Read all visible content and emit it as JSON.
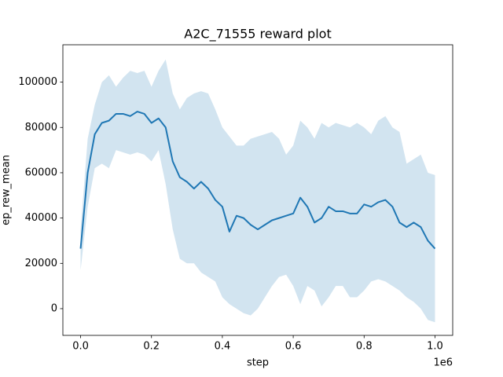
{
  "chart_data": {
    "type": "line",
    "title": "A2C_71555 reward plot",
    "x_label": "step",
    "y_label": "ep_rew_mean",
    "x_offset_label": "1e6",
    "x": [
      0,
      20000,
      40000,
      60000,
      80000,
      100000,
      120000,
      140000,
      160000,
      180000,
      200000,
      220000,
      240000,
      260000,
      280000,
      300000,
      320000,
      340000,
      360000,
      380000,
      400000,
      420000,
      440000,
      460000,
      480000,
      500000,
      520000,
      540000,
      560000,
      580000,
      600000,
      620000,
      640000,
      660000,
      680000,
      700000,
      720000,
      740000,
      760000,
      780000,
      800000,
      820000,
      840000,
      860000,
      880000,
      900000,
      920000,
      940000,
      960000,
      980000,
      1000000
    ],
    "series": [
      {
        "color": "#1f77b4",
        "band_opacity": 0.2,
        "values": [
          26500,
          60000,
          77000,
          82000,
          83000,
          86000,
          86000,
          85000,
          87000,
          86000,
          82000,
          84000,
          80000,
          65000,
          58000,
          56000,
          53000,
          56000,
          53000,
          48000,
          45000,
          34000,
          41000,
          40000,
          37000,
          35000,
          37000,
          39000,
          40000,
          41000,
          42000,
          49000,
          45000,
          38000,
          40000,
          45000,
          43000,
          43000,
          42000,
          42000,
          46000,
          45000,
          47000,
          48000,
          45000,
          38000,
          36000,
          38000,
          36000,
          30000,
          26500
        ],
        "upper": [
          35000,
          75000,
          90000,
          100000,
          103000,
          98000,
          102000,
          105000,
          104000,
          105000,
          98000,
          105000,
          110000,
          95000,
          88000,
          93000,
          95000,
          96000,
          95000,
          88000,
          80000,
          76000,
          72000,
          72000,
          75000,
          76000,
          77000,
          78000,
          75000,
          68000,
          72000,
          83000,
          80000,
          75000,
          82000,
          80000,
          82000,
          81000,
          80000,
          82000,
          80000,
          77000,
          83000,
          85000,
          80000,
          78000,
          64000,
          66000,
          68000,
          60000,
          59000
        ],
        "lower": [
          17000,
          45000,
          62000,
          64000,
          62000,
          70000,
          69000,
          68000,
          69000,
          68000,
          65000,
          70000,
          55000,
          35000,
          22000,
          20000,
          20000,
          16000,
          14000,
          12000,
          5000,
          2000,
          0,
          -2000,
          -3000,
          0,
          5000,
          10000,
          14000,
          15000,
          10000,
          2000,
          10000,
          8000,
          1000,
          5000,
          10000,
          10000,
          5000,
          5000,
          8000,
          12000,
          13000,
          12000,
          10000,
          8000,
          5000,
          3000,
          0,
          -5000,
          -6000
        ]
      }
    ],
    "xlim": [
      -50000,
      1050000
    ],
    "ylim": [
      -11800,
      116500
    ],
    "xticks": [
      {
        "value": 0,
        "label": "0.0"
      },
      {
        "value": 200000,
        "label": "0.2"
      },
      {
        "value": 400000,
        "label": "0.4"
      },
      {
        "value": 600000,
        "label": "0.6"
      },
      {
        "value": 800000,
        "label": "0.8"
      },
      {
        "value": 1000000,
        "label": "1.0"
      }
    ],
    "yticks": [
      0,
      20000,
      40000,
      60000,
      80000,
      100000
    ],
    "grid": false
  }
}
